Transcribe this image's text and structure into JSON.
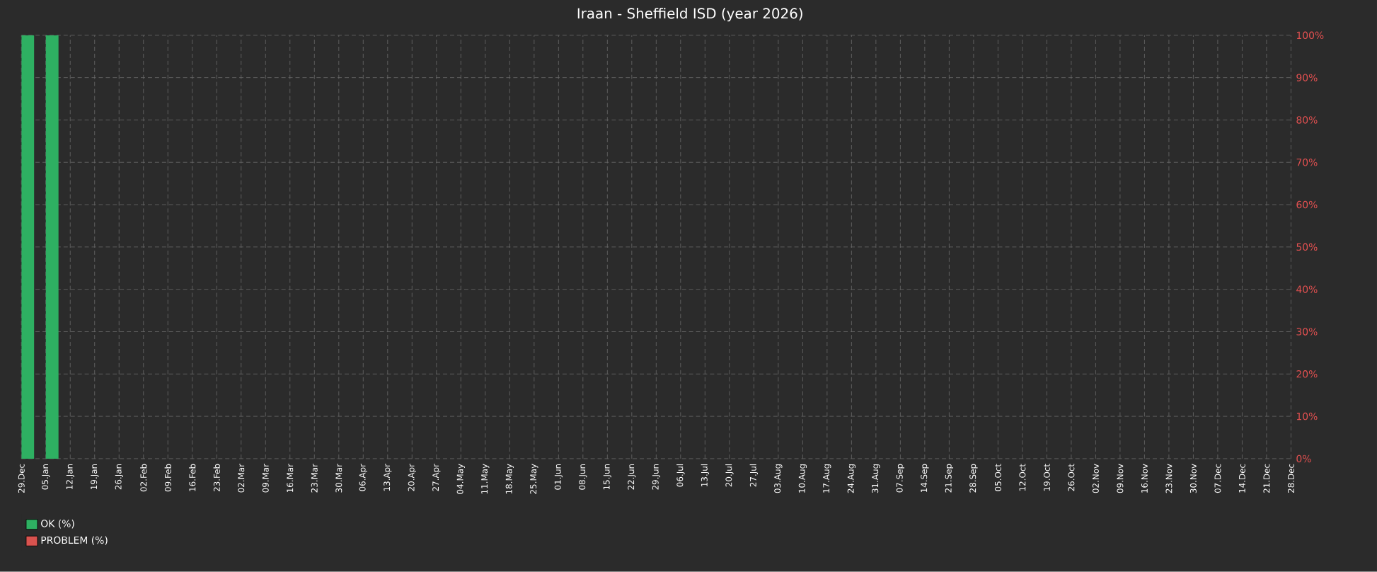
{
  "chart_data": {
    "type": "bar",
    "title": "Iraan - Sheffield ISD (year 2026)",
    "stacked": true,
    "categories": [
      "29.Dec",
      "05.Jan",
      "12.Jan",
      "19.Jan",
      "26.Jan",
      "02.Feb",
      "09.Feb",
      "16.Feb",
      "23.Feb",
      "02.Mar",
      "09.Mar",
      "16.Mar",
      "23.Mar",
      "30.Mar",
      "06.Apr",
      "13.Apr",
      "20.Apr",
      "27.Apr",
      "04.May",
      "11.May",
      "18.May",
      "25.May",
      "01.Jun",
      "08.Jun",
      "15.Jun",
      "22.Jun",
      "29.Jun",
      "06.Jul",
      "13.Jul",
      "20.Jul",
      "27.Jul",
      "03.Aug",
      "10.Aug",
      "17.Aug",
      "24.Aug",
      "31.Aug",
      "07.Sep",
      "14.Sep",
      "21.Sep",
      "28.Sep",
      "05.Oct",
      "12.Oct",
      "19.Oct",
      "26.Oct",
      "02.Nov",
      "09.Nov",
      "16.Nov",
      "23.Nov",
      "30.Nov",
      "07.Dec",
      "14.Dec",
      "21.Dec",
      "28.Dec"
    ],
    "series": [
      {
        "name": "OK (%)",
        "color": "#2eb062",
        "values": [
          100,
          100,
          null,
          null,
          null,
          null,
          null,
          null,
          null,
          null,
          null,
          null,
          null,
          null,
          null,
          null,
          null,
          null,
          null,
          null,
          null,
          null,
          null,
          null,
          null,
          null,
          null,
          null,
          null,
          null,
          null,
          null,
          null,
          null,
          null,
          null,
          null,
          null,
          null,
          null,
          null,
          null,
          null,
          null,
          null,
          null,
          null,
          null,
          null,
          null,
          null,
          null,
          null
        ]
      },
      {
        "name": "PROBLEM (%)",
        "color": "#d9534f",
        "values": [
          0,
          0,
          null,
          null,
          null,
          null,
          null,
          null,
          null,
          null,
          null,
          null,
          null,
          null,
          null,
          null,
          null,
          null,
          null,
          null,
          null,
          null,
          null,
          null,
          null,
          null,
          null,
          null,
          null,
          null,
          null,
          null,
          null,
          null,
          null,
          null,
          null,
          null,
          null,
          null,
          null,
          null,
          null,
          null,
          null,
          null,
          null,
          null,
          null,
          null,
          null,
          null,
          null
        ]
      }
    ],
    "ylim": [
      0,
      100
    ],
    "yticks": [
      {
        "value": 0,
        "label": "0%"
      },
      {
        "value": 10,
        "label": "10%"
      },
      {
        "value": 20,
        "label": "20%"
      },
      {
        "value": 30,
        "label": "30%"
      },
      {
        "value": 40,
        "label": "40%"
      },
      {
        "value": 50,
        "label": "50%"
      },
      {
        "value": 60,
        "label": "60%"
      },
      {
        "value": 70,
        "label": "70%"
      },
      {
        "value": 80,
        "label": "80%"
      },
      {
        "value": 90,
        "label": "90%"
      },
      {
        "value": 100,
        "label": "100%"
      }
    ],
    "grid": true,
    "legend": "bottom left"
  }
}
